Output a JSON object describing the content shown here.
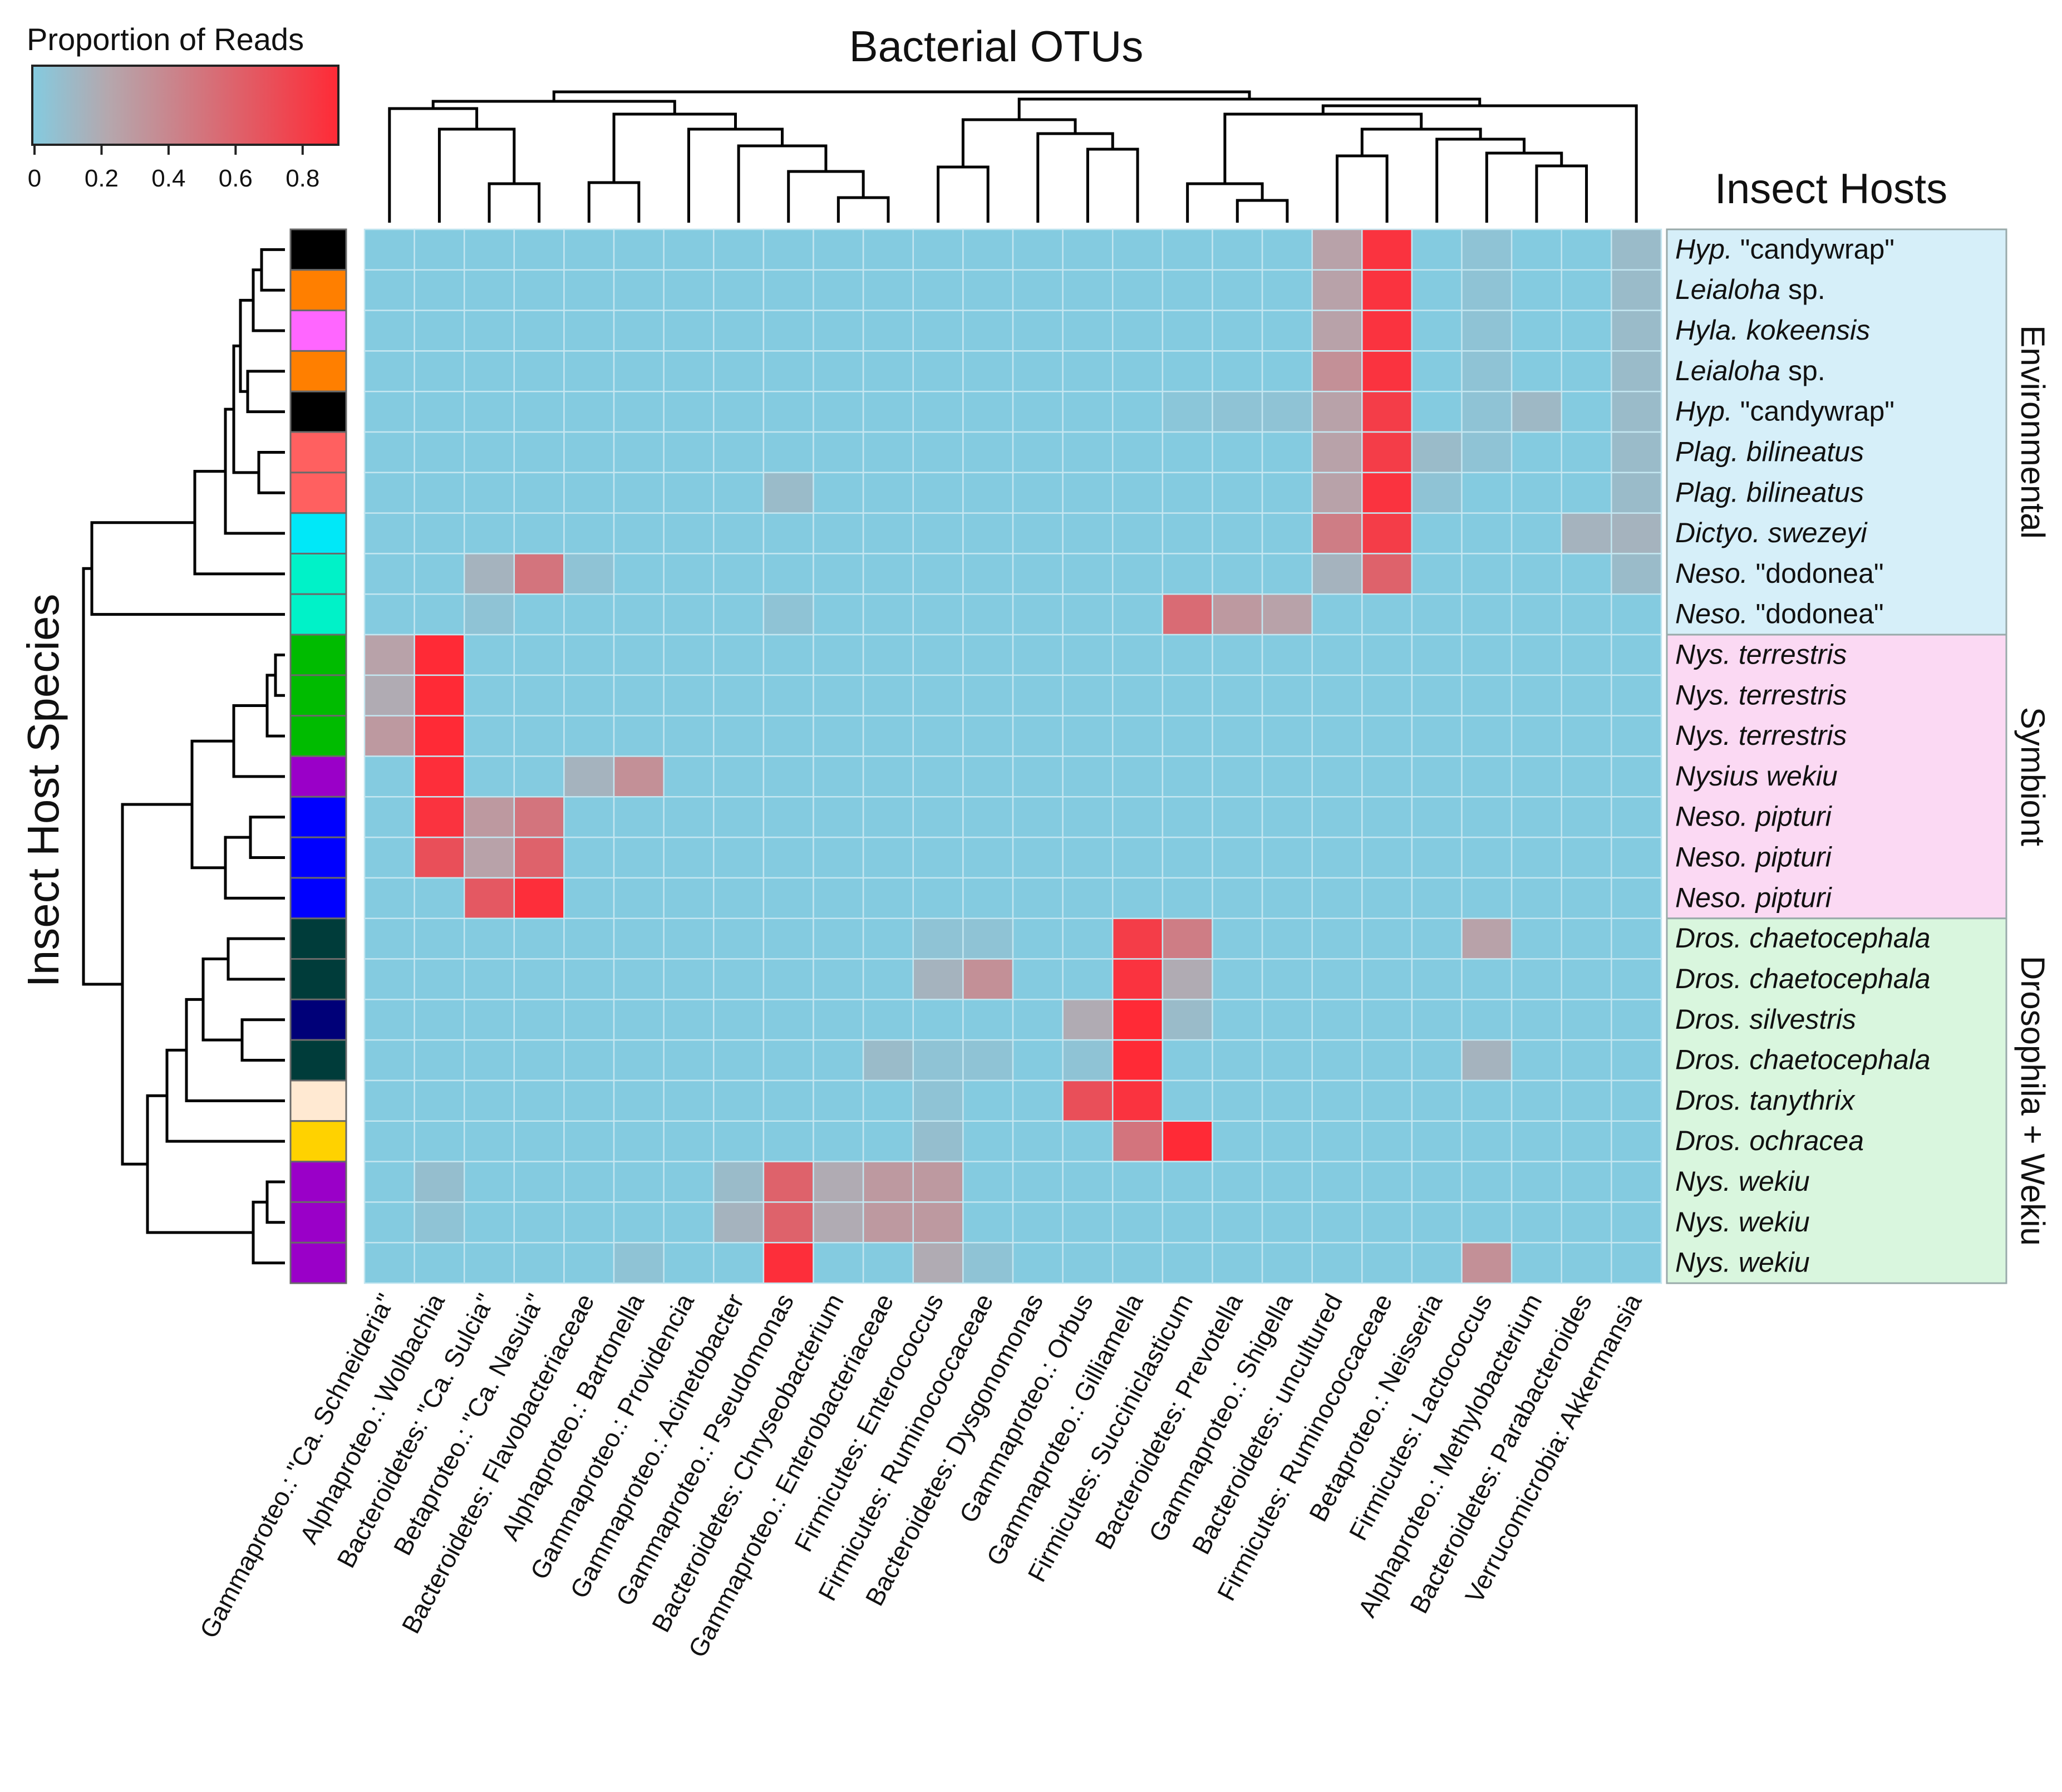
{
  "chart_data": {
    "type": "heatmap",
    "title": "Bacterial OTUs",
    "row_axis_title": "Insect Host Species",
    "row_header": "Insect Hosts",
    "legend": {
      "title": "Proportion of Reads",
      "ticks": [
        "0",
        "0.2",
        "0.4",
        "0.6",
        "0.8"
      ],
      "range": [
        0,
        0.9
      ],
      "low_color": "#84cbe0",
      "mid_color": "#b5a7ad",
      "high_color": "#ff2a36",
      "placement": "top-left"
    },
    "columns": [
      "Gammaproteo.: \"Ca. Schneideria\"",
      "Alphaproteo.: Wolbachia",
      "Bacteroidetes: \"Ca. Sulcia\"",
      "Betaproteo.: \"Ca. Nasuia\"",
      "Bacteroidetes: Flavobacteriaceae",
      "Alphaproteo.: Bartonella",
      "Gammaproteo.: Providencia",
      "Gammaproteo.: Acinetobacter",
      "Gammaproteo.: Pseudomonas",
      "Bacteroidetes: Chryseobacterium",
      "Gammaproteo.: Enterobacteriaceae",
      "Firmicutes: Enterococcus",
      "Firmicutes: Ruminococcaceae",
      "Bacteroidetes: Dysgonomonas",
      "Gammaproteo.: Orbus",
      "Gammaproteo.: Gilliamella",
      "Firmicutes: Succiniclasticum",
      "Bacteroidetes: Prevotella",
      "Gammaproteo.: Shigella",
      "Bacteroidetes: uncultured",
      "Firmicutes: Ruminococcaceae",
      "Betaproteo.: Neisseria",
      "Firmicutes: Lactococcus",
      "Alphaproteo.: Methylobacterium",
      "Bacteroidetes: Parabacteroides",
      "Verrucomicrobia: Akkermansia"
    ],
    "rows": [
      {
        "host": "Hyp.",
        "suffix": " \"candywrap\"",
        "color": "#000000",
        "group": "Environmental"
      },
      {
        "host": "Leialoha",
        "suffix": " sp.",
        "color": "#ff7f00",
        "group": "Environmental"
      },
      {
        "host": "Hyla. kokeensis",
        "suffix": "",
        "color": "#ff66ff",
        "group": "Environmental"
      },
      {
        "host": "Leialoha",
        "suffix": " sp.",
        "color": "#ff7f00",
        "group": "Environmental"
      },
      {
        "host": "Hyp.",
        "suffix": " \"candywrap\"",
        "color": "#000000",
        "group": "Environmental"
      },
      {
        "host": "Plag. bilineatus",
        "suffix": "",
        "color": "#ff6060",
        "group": "Environmental"
      },
      {
        "host": "Plag. bilineatus",
        "suffix": "",
        "color": "#ff6060",
        "group": "Environmental"
      },
      {
        "host": "Dictyo. swezeyi",
        "suffix": "",
        "color": "#00e8f8",
        "group": "Environmental"
      },
      {
        "host": "Neso.",
        "suffix": " \"dodonea\"",
        "color": "#00f2c8",
        "group": "Environmental"
      },
      {
        "host": "Neso.",
        "suffix": " \"dodonea\"",
        "color": "#00f2c8",
        "group": "Environmental"
      },
      {
        "host": "Nys. terrestris",
        "suffix": "",
        "color": "#00bb00",
        "group": "Symbiont"
      },
      {
        "host": "Nys. terrestris",
        "suffix": "",
        "color": "#00bb00",
        "group": "Symbiont"
      },
      {
        "host": "Nys. terrestris",
        "suffix": "",
        "color": "#00bb00",
        "group": "Symbiont"
      },
      {
        "host": "Nysius wekiu",
        "suffix": "",
        "color": "#9a00c8",
        "group": "Symbiont"
      },
      {
        "host": "Neso. pipturi",
        "suffix": "",
        "color": "#0000ff",
        "group": "Symbiont"
      },
      {
        "host": "Neso. pipturi",
        "suffix": "",
        "color": "#0000ff",
        "group": "Symbiont"
      },
      {
        "host": "Neso. pipturi",
        "suffix": "",
        "color": "#0000ff",
        "group": "Symbiont"
      },
      {
        "host": "Dros. chaetocephala",
        "suffix": "",
        "color": "#003c3a",
        "group": "Drosophila + Wekiu"
      },
      {
        "host": "Dros. chaetocephala",
        "suffix": "",
        "color": "#003c3a",
        "group": "Drosophila + Wekiu"
      },
      {
        "host": "Dros. silvestris",
        "suffix": "",
        "color": "#000078",
        "group": "Drosophila + Wekiu"
      },
      {
        "host": "Dros. chaetocephala",
        "suffix": "",
        "color": "#003c3a",
        "group": "Drosophila + Wekiu"
      },
      {
        "host": "Dros. tanythrix",
        "suffix": "",
        "color": "#ffe9d2",
        "group": "Drosophila + Wekiu"
      },
      {
        "host": "Dros. ochracea",
        "suffix": "",
        "color": "#ffd200",
        "group": "Drosophila + Wekiu"
      },
      {
        "host": "Nys. wekiu",
        "suffix": "",
        "color": "#9a00c8",
        "group": "Drosophila + Wekiu"
      },
      {
        "host": "Nys. wekiu",
        "suffix": "",
        "color": "#9a00c8",
        "group": "Drosophila + Wekiu"
      },
      {
        "host": "Nys. wekiu",
        "suffix": "",
        "color": "#9a00c8",
        "group": "Drosophila + Wekiu"
      }
    ],
    "groups": [
      {
        "name": "Environmental",
        "rows": [
          0,
          9
        ],
        "color": "#d6eff9"
      },
      {
        "name": "Symbiont",
        "rows": [
          10,
          16
        ],
        "color": "#fbd9f3"
      },
      {
        "name": "Drosophila + Wekiu",
        "rows": [
          17,
          25
        ],
        "color": "#d9f6de"
      }
    ],
    "values": [
      [
        0,
        0,
        0,
        0,
        0,
        0,
        0,
        0,
        0,
        0,
        0,
        0,
        0,
        0,
        0,
        0,
        0,
        0,
        0,
        0.25,
        0.85,
        0,
        0.05,
        0,
        0,
        0.1
      ],
      [
        0,
        0,
        0,
        0,
        0,
        0,
        0,
        0,
        0,
        0,
        0,
        0,
        0,
        0,
        0,
        0,
        0,
        0,
        0,
        0.25,
        0.85,
        0,
        0.05,
        0,
        0,
        0.1
      ],
      [
        0,
        0,
        0,
        0,
        0,
        0,
        0,
        0,
        0,
        0,
        0,
        0,
        0,
        0,
        0,
        0,
        0,
        0,
        0,
        0.25,
        0.85,
        0,
        0.05,
        0,
        0,
        0.1
      ],
      [
        0,
        0,
        0,
        0,
        0,
        0,
        0,
        0,
        0,
        0,
        0,
        0,
        0,
        0,
        0,
        0,
        0,
        0,
        0,
        0.35,
        0.85,
        0,
        0.05,
        0,
        0,
        0.1
      ],
      [
        0,
        0,
        0,
        0,
        0,
        0,
        0,
        0,
        0,
        0,
        0,
        0,
        0,
        0,
        0,
        0,
        0.03,
        0.05,
        0.05,
        0.25,
        0.8,
        0,
        0.05,
        0.12,
        0,
        0.1
      ],
      [
        0,
        0,
        0,
        0,
        0,
        0,
        0,
        0,
        0,
        0,
        0,
        0,
        0,
        0,
        0,
        0,
        0,
        0,
        0,
        0.25,
        0.8,
        0.1,
        0.05,
        0,
        0,
        0.1
      ],
      [
        0,
        0,
        0,
        0,
        0,
        0,
        0,
        0,
        0.1,
        0,
        0,
        0,
        0,
        0,
        0,
        0,
        0,
        0,
        0,
        0.25,
        0.85,
        0.05,
        0,
        0,
        0,
        0.1
      ],
      [
        0,
        0,
        0,
        0,
        0,
        0,
        0,
        0,
        0,
        0,
        0,
        0,
        0,
        0,
        0,
        0,
        0,
        0,
        0,
        0.45,
        0.8,
        0,
        0,
        0,
        0.15,
        0.15
      ],
      [
        0,
        0,
        0.15,
        0.5,
        0.05,
        0,
        0,
        0,
        0,
        0,
        0,
        0,
        0,
        0,
        0,
        0,
        0,
        0,
        0,
        0.15,
        0.6,
        0,
        0,
        0,
        0,
        0.1
      ],
      [
        0,
        0,
        0.05,
        0,
        0,
        0,
        0,
        0,
        0.05,
        0,
        0,
        0,
        0,
        0,
        0,
        0,
        0.55,
        0.3,
        0.25,
        0,
        0,
        0,
        0,
        0,
        0,
        0
      ],
      [
        0.25,
        0.9,
        0,
        0,
        0,
        0,
        0,
        0,
        0,
        0,
        0,
        0,
        0,
        0,
        0,
        0,
        0,
        0,
        0,
        0,
        0,
        0,
        0,
        0,
        0,
        0
      ],
      [
        0.2,
        0.9,
        0,
        0,
        0,
        0,
        0,
        0,
        0,
        0,
        0,
        0,
        0,
        0,
        0,
        0,
        0,
        0,
        0,
        0,
        0,
        0,
        0,
        0,
        0,
        0
      ],
      [
        0.3,
        0.9,
        0,
        0,
        0,
        0,
        0,
        0,
        0,
        0,
        0,
        0,
        0,
        0,
        0,
        0,
        0,
        0,
        0,
        0,
        0,
        0,
        0,
        0,
        0,
        0
      ],
      [
        0,
        0.88,
        0,
        0,
        0.15,
        0.35,
        0,
        0,
        0,
        0,
        0,
        0,
        0,
        0,
        0,
        0,
        0,
        0,
        0,
        0,
        0,
        0,
        0,
        0,
        0,
        0
      ],
      [
        0,
        0.85,
        0.3,
        0.5,
        0,
        0,
        0,
        0,
        0,
        0,
        0,
        0,
        0,
        0,
        0,
        0,
        0,
        0,
        0,
        0,
        0,
        0,
        0,
        0,
        0,
        0
      ],
      [
        0,
        0.7,
        0.25,
        0.6,
        0,
        0,
        0,
        0,
        0,
        0,
        0,
        0,
        0,
        0,
        0,
        0,
        0,
        0,
        0,
        0,
        0,
        0,
        0,
        0,
        0,
        0
      ],
      [
        0,
        0,
        0.65,
        0.88,
        0,
        0,
        0,
        0,
        0,
        0,
        0,
        0,
        0,
        0,
        0,
        0,
        0,
        0,
        0,
        0,
        0,
        0,
        0,
        0,
        0,
        0
      ],
      [
        0,
        0,
        0,
        0,
        0,
        0,
        0,
        0,
        0,
        0,
        0,
        0.05,
        0.05,
        0,
        0,
        0.8,
        0.45,
        0,
        0,
        0,
        0,
        0,
        0.25,
        0,
        0,
        0
      ],
      [
        0,
        0,
        0,
        0,
        0,
        0,
        0,
        0,
        0,
        0,
        0,
        0.15,
        0.35,
        0,
        0,
        0.85,
        0.2,
        0,
        0,
        0,
        0,
        0,
        0,
        0,
        0,
        0
      ],
      [
        0,
        0,
        0,
        0,
        0,
        0,
        0,
        0,
        0,
        0,
        0,
        0,
        0,
        0,
        0.2,
        0.9,
        0.1,
        0,
        0,
        0,
        0,
        0,
        0,
        0,
        0,
        0
      ],
      [
        0,
        0,
        0,
        0,
        0,
        0,
        0,
        0,
        0,
        0,
        0.1,
        0.05,
        0.05,
        0,
        0.05,
        0.9,
        0,
        0,
        0,
        0,
        0,
        0,
        0.15,
        0,
        0,
        0
      ],
      [
        0,
        0,
        0,
        0,
        0,
        0,
        0,
        0,
        0,
        0,
        0,
        0.05,
        0,
        0,
        0.7,
        0.85,
        0,
        0,
        0,
        0,
        0,
        0,
        0,
        0,
        0,
        0
      ],
      [
        0,
        0,
        0,
        0,
        0,
        0,
        0,
        0,
        0,
        0,
        0,
        0.08,
        0,
        0,
        0,
        0.5,
        0.9,
        0,
        0,
        0,
        0,
        0,
        0,
        0,
        0,
        0
      ],
      [
        0,
        0.08,
        0,
        0,
        0,
        0,
        0,
        0.1,
        0.6,
        0.2,
        0.3,
        0.3,
        0,
        0,
        0,
        0,
        0,
        0,
        0,
        0,
        0,
        0,
        0,
        0,
        0,
        0
      ],
      [
        0,
        0.05,
        0,
        0,
        0,
        0,
        0,
        0.15,
        0.6,
        0.2,
        0.3,
        0.3,
        0,
        0,
        0,
        0,
        0,
        0,
        0,
        0,
        0,
        0,
        0,
        0,
        0,
        0
      ],
      [
        0,
        0,
        0,
        0,
        0,
        0.05,
        0,
        0,
        0.88,
        0,
        0,
        0.2,
        0.05,
        0,
        0,
        0,
        0,
        0,
        0,
        0,
        0,
        0,
        0.35,
        0,
        0,
        0
      ]
    ]
  }
}
